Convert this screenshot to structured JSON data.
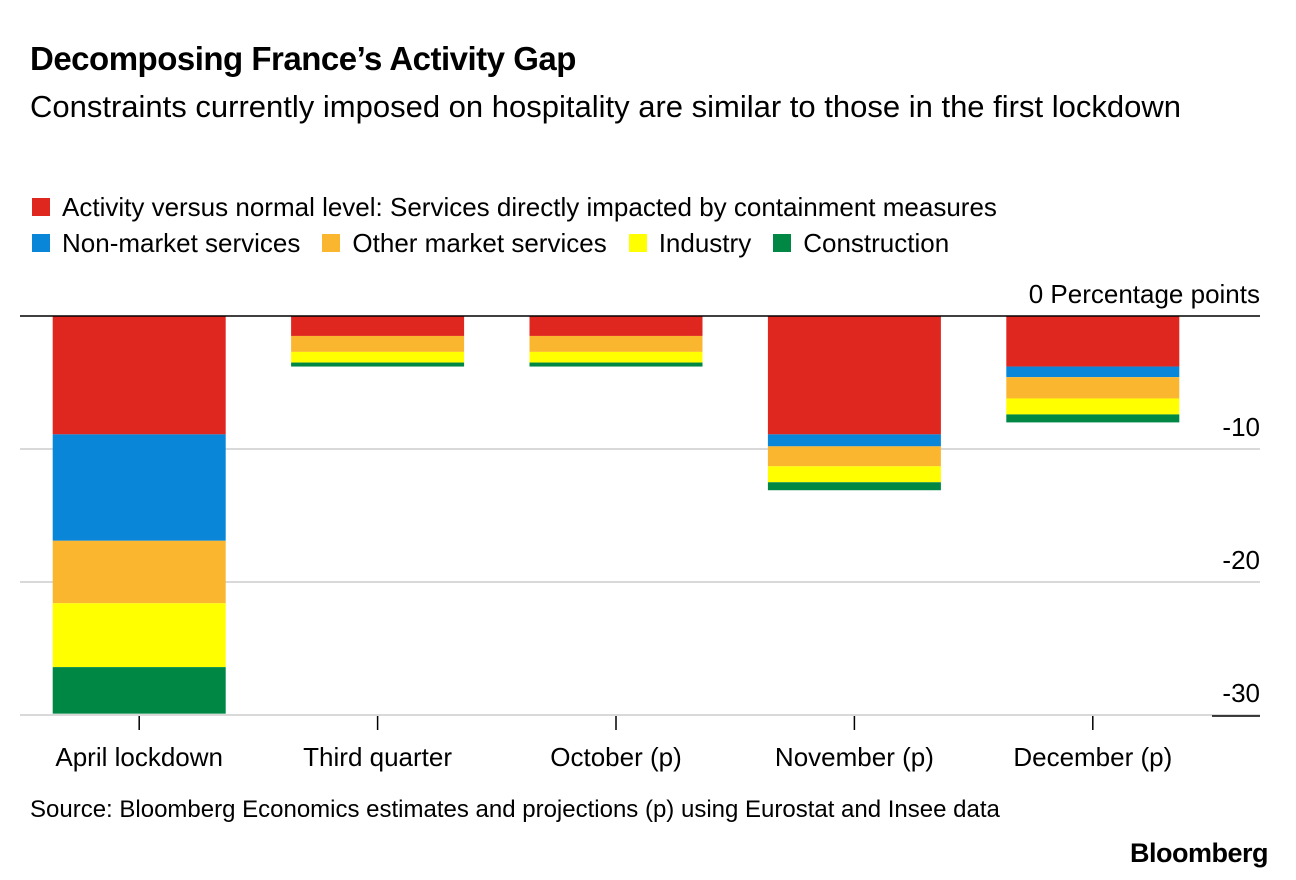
{
  "header": {
    "title": "Decomposing France’s Activity Gap",
    "subtitle": "Constraints currently imposed on hospitality are similar to those in the first lockdown"
  },
  "footer": {
    "source": "Source: Bloomberg Economics estimates and projections (p) using Eurostat and Insee data",
    "brand": "Bloomberg"
  },
  "chart_data": {
    "type": "bar",
    "stacked": true,
    "categories": [
      "April lockdown",
      "Third quarter",
      "October (p)",
      "November (p)",
      "December (p)"
    ],
    "series": [
      {
        "name": "Activity versus normal level: Services directly impacted by containment measures",
        "color": "#e0271f",
        "values": [
          -8.9,
          -1.5,
          -1.5,
          -8.9,
          -3.8
        ]
      },
      {
        "name": "Non-market services",
        "color": "#0a86d9",
        "values": [
          -8.0,
          0,
          0,
          -0.9,
          -0.8
        ]
      },
      {
        "name": "Other market services",
        "color": "#fbb630",
        "values": [
          -4.7,
          -1.2,
          -1.2,
          -1.5,
          -1.6
        ]
      },
      {
        "name": "Industry",
        "color": "#ffff00",
        "values": [
          -4.8,
          -0.8,
          -0.8,
          -1.2,
          -1.2
        ]
      },
      {
        "name": "Construction",
        "color": "#008744",
        "values": [
          -3.5,
          -0.3,
          -0.3,
          -0.6,
          -0.6
        ]
      }
    ],
    "ylabel": "Percentage points",
    "y_ticks": [
      {
        "value": 0,
        "label": "0"
      },
      {
        "value": -10,
        "label": "-10"
      },
      {
        "value": -20,
        "label": "-20"
      },
      {
        "value": -30,
        "label": "-30"
      }
    ],
    "ylim": [
      -30,
      0
    ],
    "grid": true,
    "legend_position": "top"
  }
}
